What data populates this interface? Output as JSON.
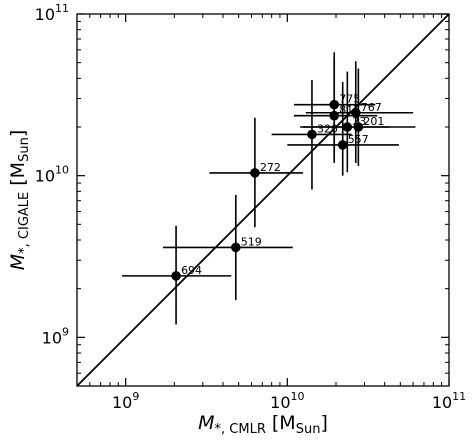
{
  "chart_data": {
    "type": "scatter",
    "xlabel": {
      "main": "M",
      "sub": "*, CMLR",
      "unit_main": "M",
      "unit_sub": "Sun"
    },
    "ylabel": {
      "main": "M",
      "sub": "*, CIGALE",
      "unit_main": "M",
      "unit_sub": "Sun"
    },
    "xscale": "log",
    "yscale": "log",
    "xlim": [
      500000000.0,
      100000000000.0
    ],
    "ylim": [
      500000000.0,
      100000000000.0
    ],
    "x_ticks": [
      {
        "value": 1000000000.0,
        "base": "10",
        "exp": "9"
      },
      {
        "value": 10000000000.0,
        "base": "10",
        "exp": "10"
      },
      {
        "value": 100000000000.0,
        "base": "10",
        "exp": "11"
      }
    ],
    "y_ticks": [
      {
        "value": 1000000000.0,
        "base": "10",
        "exp": "9"
      },
      {
        "value": 10000000000.0,
        "base": "10",
        "exp": "10"
      },
      {
        "value": 100000000000.0,
        "base": "10",
        "exp": "11"
      }
    ],
    "one_to_one_line": true,
    "points": [
      {
        "label": "694",
        "x": 2050000000.0,
        "y": 2400000000.0,
        "xerr": [
          950000000.0,
          4500000000.0
        ],
        "yerr": [
          1200000000.0,
          4900000000.0
        ]
      },
      {
        "label": "519",
        "x": 4800000000.0,
        "y": 3600000000.0,
        "xerr": [
          1700000000.0,
          10800000000.0
        ],
        "yerr": [
          1700000000.0,
          7600000000.0
        ]
      },
      {
        "label": "272",
        "x": 6300000000.0,
        "y": 10400000000.0,
        "xerr": [
          3300000000.0,
          12500000000.0
        ],
        "yerr": [
          4800000000.0,
          22800000000.0
        ]
      },
      {
        "label": "320",
        "x": 14200000000.0,
        "y": 18000000000.0,
        "xerr": [
          8000000000.0,
          25000000000.0
        ],
        "yerr": [
          8200000000.0,
          39000000000.0
        ]
      },
      {
        "label": "775",
        "x": 19500000000.0,
        "y": 27500000000.0,
        "xerr": [
          11000000000.0,
          35000000000.0
        ],
        "yerr": [
          13000000000.0,
          58000000000.0
        ]
      },
      {
        "label": "817",
        "x": 19500000000.0,
        "y": 23500000000.0,
        "xerr": [
          11000000000.0,
          36000000000.0
        ],
        "yerr": [
          12000000000.0,
          52000000000.0
        ]
      },
      {
        "label": "767",
        "x": 26500000000.0,
        "y": 24500000000.0,
        "xerr": [
          13000000000.0,
          60000000000.0
        ],
        "yerr": [
          12000000000.0,
          51000000000.0
        ]
      },
      {
        "label": "23",
        "x": 23500000000.0,
        "y": 20000000000.0,
        "xerr": [
          12000000000.0,
          43000000000.0
        ],
        "yerr": [
          10500000000.0,
          44000000000.0
        ]
      },
      {
        "label": "201",
        "x": 27500000000.0,
        "y": 20000000000.0,
        "xerr": [
          12500000000.0,
          62000000000.0
        ],
        "yerr": [
          11500000000.0,
          46000000000.0
        ]
      },
      {
        "label": "557",
        "x": 22000000000.0,
        "y": 15500000000.0,
        "xerr": [
          10000000000.0,
          49000000000.0
        ],
        "yerr": [
          10000000000.0,
          38000000000.0
        ]
      }
    ]
  }
}
